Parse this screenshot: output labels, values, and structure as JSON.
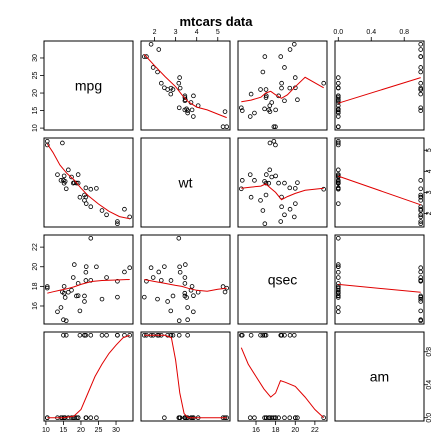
{
  "chart_data": {
    "type": "scatter",
    "title": "mtcars data",
    "variables": [
      "mpg",
      "wt",
      "qsec",
      "am"
    ],
    "ranges": {
      "mpg": [
        10.4,
        33.9
      ],
      "wt": [
        1.513,
        5.424
      ],
      "qsec": [
        14.5,
        22.9
      ],
      "am": [
        0,
        1
      ]
    },
    "ticks": {
      "mpg": [
        "10",
        "15",
        "20",
        "25",
        "30"
      ],
      "wt": [
        "2",
        "3",
        "4",
        "5"
      ],
      "qsec": [
        "16",
        "18",
        "20",
        "22"
      ],
      "am": [
        "0.0",
        "0.4",
        "0.8"
      ]
    },
    "smoother_color": "#e00000",
    "point_color": "#000000",
    "data": {
      "mpg": [
        21.0,
        21.0,
        22.8,
        21.4,
        18.7,
        18.1,
        14.3,
        24.4,
        22.8,
        19.2,
        17.8,
        16.4,
        17.3,
        15.2,
        10.4,
        10.4,
        14.7,
        32.4,
        30.4,
        33.9,
        21.5,
        15.5,
        15.2,
        13.3,
        19.2,
        27.3,
        26.0,
        30.4,
        15.8,
        19.7,
        15.0,
        21.4
      ],
      "wt": [
        2.62,
        2.875,
        2.32,
        3.215,
        3.44,
        3.46,
        3.57,
        3.19,
        3.15,
        3.44,
        3.44,
        4.07,
        3.73,
        3.78,
        5.25,
        5.424,
        5.345,
        2.2,
        1.615,
        1.835,
        2.465,
        3.52,
        3.435,
        3.84,
        3.845,
        1.935,
        2.14,
        1.513,
        3.17,
        2.77,
        3.57,
        2.78
      ],
      "qsec": [
        16.46,
        17.02,
        18.61,
        19.44,
        17.02,
        20.22,
        15.84,
        20.0,
        22.9,
        18.3,
        18.9,
        17.4,
        17.6,
        18.0,
        17.98,
        17.82,
        17.42,
        19.47,
        18.52,
        19.9,
        20.01,
        16.87,
        17.3,
        15.41,
        17.05,
        18.9,
        16.7,
        16.9,
        14.5,
        15.5,
        14.6,
        18.6
      ],
      "am": [
        1,
        1,
        1,
        0,
        0,
        0,
        0,
        0,
        0,
        0,
        0,
        0,
        0,
        0,
        0,
        0,
        0,
        1,
        1,
        1,
        0,
        0,
        0,
        0,
        0,
        1,
        1,
        1,
        1,
        1,
        1,
        1
      ]
    },
    "smoothers": {
      "wt|mpg": [
        [
          10.4,
          5.3
        ],
        [
          12,
          4.9
        ],
        [
          14,
          4.3
        ],
        [
          16,
          3.9
        ],
        [
          18,
          3.6
        ],
        [
          20,
          3.2
        ],
        [
          22,
          2.85
        ],
        [
          25,
          2.45
        ],
        [
          28,
          2.1
        ],
        [
          31,
          1.85
        ],
        [
          33.9,
          1.75
        ]
      ],
      "qsec|mpg": [
        [
          10.4,
          17.3
        ],
        [
          12,
          17.45
        ],
        [
          14,
          17.6
        ],
        [
          16,
          17.75
        ],
        [
          18,
          17.95
        ],
        [
          20,
          18.2
        ],
        [
          23,
          18.5
        ],
        [
          26,
          18.6
        ],
        [
          30,
          18.65
        ],
        [
          33.9,
          18.7
        ]
      ],
      "am|mpg": [
        [
          10.4,
          0
        ],
        [
          15,
          0
        ],
        [
          18,
          0.02
        ],
        [
          20,
          0.1
        ],
        [
          22,
          0.3
        ],
        [
          24,
          0.5
        ],
        [
          26,
          0.65
        ],
        [
          28,
          0.78
        ],
        [
          30,
          0.88
        ],
        [
          32,
          0.97
        ],
        [
          33.9,
          1.0
        ]
      ],
      "mpg|wt": [
        [
          1.513,
          31
        ],
        [
          2,
          27.8
        ],
        [
          2.5,
          24.7
        ],
        [
          3,
          21.8
        ],
        [
          3.3,
          19.5
        ],
        [
          3.6,
          17.5
        ],
        [
          4,
          16.0
        ],
        [
          4.5,
          15.2
        ],
        [
          5,
          14.0
        ],
        [
          5.424,
          13.0
        ]
      ],
      "qsec|wt": [
        [
          1.513,
          18.7
        ],
        [
          2,
          18.5
        ],
        [
          2.5,
          18.3
        ],
        [
          3,
          18.1
        ],
        [
          3.3,
          18.0
        ],
        [
          3.6,
          17.8
        ],
        [
          4,
          17.6
        ],
        [
          4.5,
          17.5
        ],
        [
          5,
          17.7
        ],
        [
          5.424,
          17.8
        ]
      ],
      "am|wt": [
        [
          1.513,
          1.0
        ],
        [
          2,
          1.0
        ],
        [
          2.5,
          1.0
        ],
        [
          2.8,
          0.97
        ],
        [
          3.0,
          0.7
        ],
        [
          3.2,
          0.3
        ],
        [
          3.4,
          0.05
        ],
        [
          3.6,
          0.0
        ],
        [
          4,
          0.0
        ],
        [
          5.424,
          0.0
        ]
      ],
      "mpg|qsec": [
        [
          14.5,
          17.5
        ],
        [
          15.5,
          18.0
        ],
        [
          16.5,
          18.8
        ],
        [
          17,
          20.0
        ],
        [
          17.5,
          20.5
        ],
        [
          18,
          19.5
        ],
        [
          18.6,
          18.5
        ],
        [
          19.2,
          19.5
        ],
        [
          20,
          21.8
        ],
        [
          21,
          24.5
        ],
        [
          22.9,
          21.5
        ]
      ],
      "wt|qsec": [
        [
          14.5,
          3.2
        ],
        [
          15.5,
          3.25
        ],
        [
          16.5,
          3.3
        ],
        [
          17,
          3.4
        ],
        [
          17.5,
          3.2
        ],
        [
          18,
          3.0
        ],
        [
          18.6,
          2.65
        ],
        [
          19.2,
          2.8
        ],
        [
          20,
          2.95
        ],
        [
          21,
          3.1
        ],
        [
          22.9,
          3.2
        ]
      ],
      "am|qsec": [
        [
          14.5,
          0.85
        ],
        [
          15.2,
          0.65
        ],
        [
          16,
          0.5
        ],
        [
          16.8,
          0.35
        ],
        [
          17.5,
          0.25
        ],
        [
          18,
          0.3
        ],
        [
          18.5,
          0.45
        ],
        [
          19,
          0.43
        ],
        [
          20,
          0.38
        ],
        [
          21,
          0.25
        ],
        [
          22,
          0.1
        ],
        [
          22.9,
          0.0
        ]
      ],
      "mpg|am": [
        [
          0,
          17.1
        ],
        [
          1,
          24.4
        ]
      ],
      "wt|am": [
        [
          0,
          3.77
        ],
        [
          1,
          2.41
        ]
      ],
      "qsec|am": [
        [
          0,
          18.2
        ],
        [
          1,
          17.4
        ]
      ]
    }
  }
}
